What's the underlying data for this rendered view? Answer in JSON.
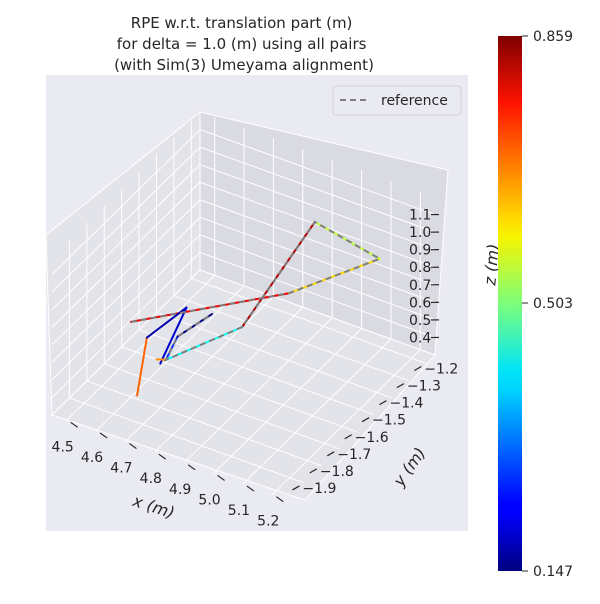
{
  "chart_data": {
    "type": "line",
    "projection": "3d",
    "title": "RPE w.r.t. translation part (m)\nfor delta = 1.0 (m) using all pairs\n(with Sim(3) Umeyama alignment)",
    "xlabel": "x (m)",
    "ylabel": "y (m)",
    "zlabel": "z (m)",
    "x_ticks": [
      "4.5",
      "4.6",
      "4.7",
      "4.8",
      "4.9",
      "5.0",
      "5.1",
      "5.2"
    ],
    "y_ticks": [
      "−1.2",
      "−1.3",
      "−1.4",
      "−1.5",
      "−1.6",
      "−1.7",
      "−1.8",
      "−1.9"
    ],
    "z_ticks": [
      "0.4",
      "0.5",
      "0.6",
      "0.7",
      "0.8",
      "0.9",
      "1.0",
      "1.1"
    ],
    "legend": {
      "label": "reference",
      "style": "dashed",
      "color": "#7f7f7f",
      "position": "top-right"
    },
    "colorbar": {
      "colormap": "jet",
      "min": 0.147,
      "max": 0.859,
      "tick_labels": [
        "0.859",
        "0.503",
        "0.147"
      ]
    },
    "pane_color": "#eaeaf2",
    "grid": true,
    "series": [
      {
        "kind": "reference",
        "points": [
          [
            4.57,
            -1.75,
            0.66
          ],
          [
            5.02,
            -1.6,
            0.95
          ],
          [
            5.18,
            -1.35,
            1.0
          ],
          [
            4.93,
            -1.3,
            1.01
          ],
          [
            4.86,
            -1.6,
            0.66
          ],
          [
            4.66,
            -1.7,
            0.45
          ],
          [
            4.67,
            -1.65,
            0.54
          ],
          [
            4.77,
            -1.62,
            0.7
          ]
        ]
      },
      {
        "kind": "estimate",
        "points": [
          [
            4.57,
            -1.75,
            0.66
          ],
          [
            5.02,
            -1.6,
            0.95
          ],
          [
            5.18,
            -1.35,
            1.0
          ],
          [
            4.93,
            -1.3,
            1.01
          ],
          [
            4.86,
            -1.6,
            0.66
          ],
          [
            4.66,
            -1.7,
            0.45
          ],
          [
            4.67,
            -1.65,
            0.54
          ],
          [
            4.77,
            -1.62,
            0.7
          ]
        ],
        "segment_errors": [
          0.78,
          0.62,
          0.55,
          0.82,
          0.42,
          0.27,
          0.15
        ]
      },
      {
        "kind": "estimate",
        "points": [
          [
            4.71,
            -1.95,
            0.52
          ],
          [
            4.69,
            -1.86,
            0.75
          ],
          [
            4.73,
            -1.7,
            0.79
          ],
          [
            4.7,
            -1.8,
            0.55
          ]
        ],
        "segment_errors": [
          0.7,
          0.18,
          0.2
        ]
      },
      {
        "kind": "estimate",
        "points": [
          [
            4.66,
            -1.7,
            0.45
          ],
          [
            4.64,
            -1.72,
            0.46
          ]
        ],
        "segment_errors": [
          0.67
        ]
      }
    ]
  }
}
